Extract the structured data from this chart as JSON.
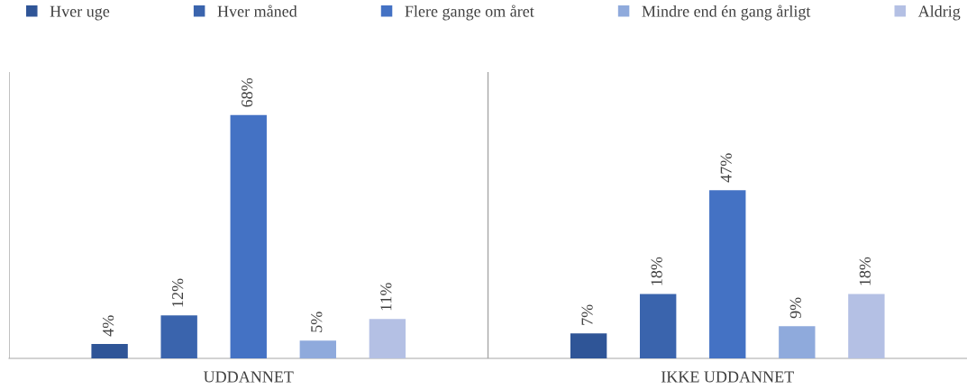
{
  "chart_data": {
    "type": "bar",
    "categories": [
      "UDDANNET",
      "IKKE UDDANNET"
    ],
    "series": [
      {
        "name": "Hver uge",
        "color": "#2f5597",
        "values": [
          4,
          7
        ],
        "value_labels": [
          "4%",
          "7%"
        ]
      },
      {
        "name": "Hver måned",
        "color": "#3a64ad",
        "values": [
          12,
          18
        ],
        "value_labels": [
          "12%",
          "18%"
        ]
      },
      {
        "name": "Flere gange om året",
        "color": "#4472c4",
        "values": [
          68,
          47
        ],
        "value_labels": [
          "68%",
          "47%"
        ]
      },
      {
        "name": "Mindre end én gang årligt",
        "color": "#8faadc",
        "values": [
          5,
          9
        ],
        "value_labels": [
          "5%",
          "9%"
        ]
      },
      {
        "name": "Aldrig",
        "color": "#b4c0e4",
        "values": [
          11,
          18
        ],
        "value_labels": [
          "11%",
          "18%"
        ]
      }
    ],
    "ylim": [
      0,
      80
    ],
    "grid": "x",
    "legend": "top",
    "tick_labels": "x"
  }
}
